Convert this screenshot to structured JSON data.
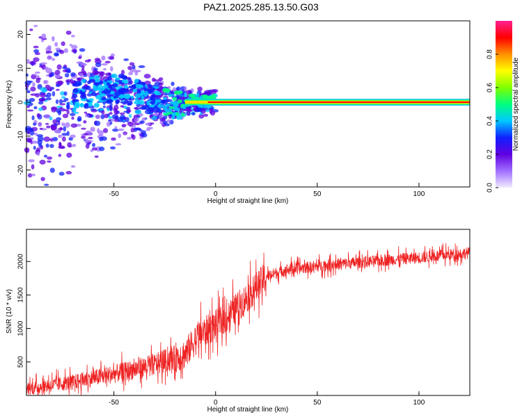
{
  "title": "PAZ1.2025.285.13.50.G03",
  "chart_data": [
    {
      "type": "heatmap",
      "title": "",
      "xlabel": "Height of straight line (km)",
      "ylabel": "Frequency (Hz)",
      "xlim": [
        -93,
        125
      ],
      "ylim": [
        -25,
        24
      ],
      "xticks": [
        -50,
        0,
        50,
        100
      ],
      "xtick_labels": [
        "-50",
        "0",
        "50",
        "100"
      ],
      "yticks": [
        -20,
        -10,
        0,
        10,
        20
      ],
      "ytick_labels": [
        "-20",
        "-10",
        "0",
        "10",
        "20"
      ],
      "signal_line": {
        "frequency": 0,
        "x_start": -15,
        "x_end": 125,
        "amplitude": 0.95
      },
      "scatter_region": {
        "x_start": -93,
        "x_end": 0
      },
      "colorbar": {
        "label": "Normalized spectral amplitude",
        "range": [
          0,
          1
        ],
        "ticks": [
          0.0,
          0.2,
          0.4,
          0.6,
          0.8
        ],
        "tick_labels": [
          "0.0",
          "0.2",
          "0.4",
          "0.6",
          "0.8"
        ],
        "colors": [
          "#f2eaff",
          "#a070ff",
          "#6000e0",
          "#1020ff",
          "#00c8ff",
          "#00ff80",
          "#80ff00",
          "#ffff00",
          "#ff9000",
          "#ff0000",
          "#ff2090"
        ]
      }
    },
    {
      "type": "line",
      "title": "",
      "xlabel": "Height of straight line (km)",
      "ylabel": "SNR (10 * v/v)",
      "xlim": [
        -93,
        125
      ],
      "ylim": [
        0,
        2480
      ],
      "xticks": [
        -50,
        0,
        50,
        100
      ],
      "xtick_labels": [
        "-50",
        "0",
        "50",
        "100"
      ],
      "yticks": [
        500,
        1000,
        1500,
        2000
      ],
      "ytick_labels": [
        "500",
        "1000",
        "1500",
        "2000"
      ],
      "color": "#ee2222",
      "trend": [
        {
          "x": -93,
          "y": 100
        },
        {
          "x": -70,
          "y": 200
        },
        {
          "x": -50,
          "y": 320
        },
        {
          "x": -30,
          "y": 460
        },
        {
          "x": -15,
          "y": 620
        },
        {
          "x": -8,
          "y": 900
        },
        {
          "x": 5,
          "y": 1150
        },
        {
          "x": 15,
          "y": 1450
        },
        {
          "x": 25,
          "y": 1780
        },
        {
          "x": 35,
          "y": 1880
        },
        {
          "x": 60,
          "y": 1960
        },
        {
          "x": 100,
          "y": 2060
        },
        {
          "x": 125,
          "y": 2130
        }
      ]
    }
  ]
}
